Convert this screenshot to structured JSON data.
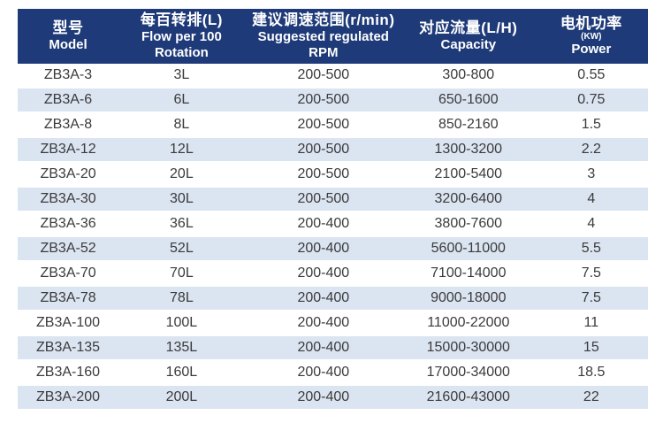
{
  "colors": {
    "header_bg": "#1e3a78",
    "stripe_bg": "#dbe4f1",
    "header_text": "#ffffff",
    "body_text": "#3b3b3b"
  },
  "chart_data": {
    "type": "table",
    "title": "",
    "columns": [
      {
        "id": "model",
        "header_lines": [
          {
            "text": "型号",
            "style": "zh"
          },
          {
            "text": "Model",
            "style": "en"
          }
        ]
      },
      {
        "id": "flow",
        "header_lines": [
          {
            "text": "每百转排(L)",
            "style": "zh"
          },
          {
            "text": "Flow per 100",
            "style": "en"
          },
          {
            "text": "Rotation",
            "style": "en"
          }
        ]
      },
      {
        "id": "rpm",
        "header_lines": [
          {
            "text": "建议调速范围(r/min)",
            "style": "zh"
          },
          {
            "text": "Suggested regulated",
            "style": "en"
          },
          {
            "text": "RPM",
            "style": "en"
          }
        ]
      },
      {
        "id": "capacity",
        "header_lines": [
          {
            "text": "对应流量(L/H)",
            "style": "zh"
          },
          {
            "text": "Capacity",
            "style": "en"
          }
        ]
      },
      {
        "id": "power",
        "header_lines": [
          {
            "text": "电机功率",
            "style": "zh"
          },
          {
            "text": "(KW)",
            "style": "small"
          },
          {
            "text": "Power",
            "style": "en"
          }
        ]
      }
    ],
    "rows": [
      [
        "ZB3A-3",
        "3L",
        "200-500",
        "300-800",
        "0.55"
      ],
      [
        "ZB3A-6",
        "6L",
        "200-500",
        "650-1600",
        "0.75"
      ],
      [
        "ZB3A-8",
        "8L",
        "200-500",
        "850-2160",
        "1.5"
      ],
      [
        "ZB3A-12",
        "12L",
        "200-500",
        "1300-3200",
        "2.2"
      ],
      [
        "ZB3A-20",
        "20L",
        "200-500",
        "2100-5400",
        "3"
      ],
      [
        "ZB3A-30",
        "30L",
        "200-500",
        "3200-6400",
        "4"
      ],
      [
        "ZB3A-36",
        "36L",
        "200-400",
        "3800-7600",
        "4"
      ],
      [
        "ZB3A-52",
        "52L",
        "200-400",
        "5600-11000",
        "5.5"
      ],
      [
        "ZB3A-70",
        "70L",
        "200-400",
        "7100-14000",
        "7.5"
      ],
      [
        "ZB3A-78",
        "78L",
        "200-400",
        "9000-18000",
        "7.5"
      ],
      [
        "ZB3A-100",
        "100L",
        "200-400",
        "11000-22000",
        "11"
      ],
      [
        "ZB3A-135",
        "135L",
        "200-400",
        "15000-30000",
        "15"
      ],
      [
        "ZB3A-160",
        "160L",
        "200-400",
        "17000-34000",
        "18.5"
      ],
      [
        "ZB3A-200",
        "200L",
        "200-400",
        "21600-43000",
        "22"
      ]
    ]
  }
}
